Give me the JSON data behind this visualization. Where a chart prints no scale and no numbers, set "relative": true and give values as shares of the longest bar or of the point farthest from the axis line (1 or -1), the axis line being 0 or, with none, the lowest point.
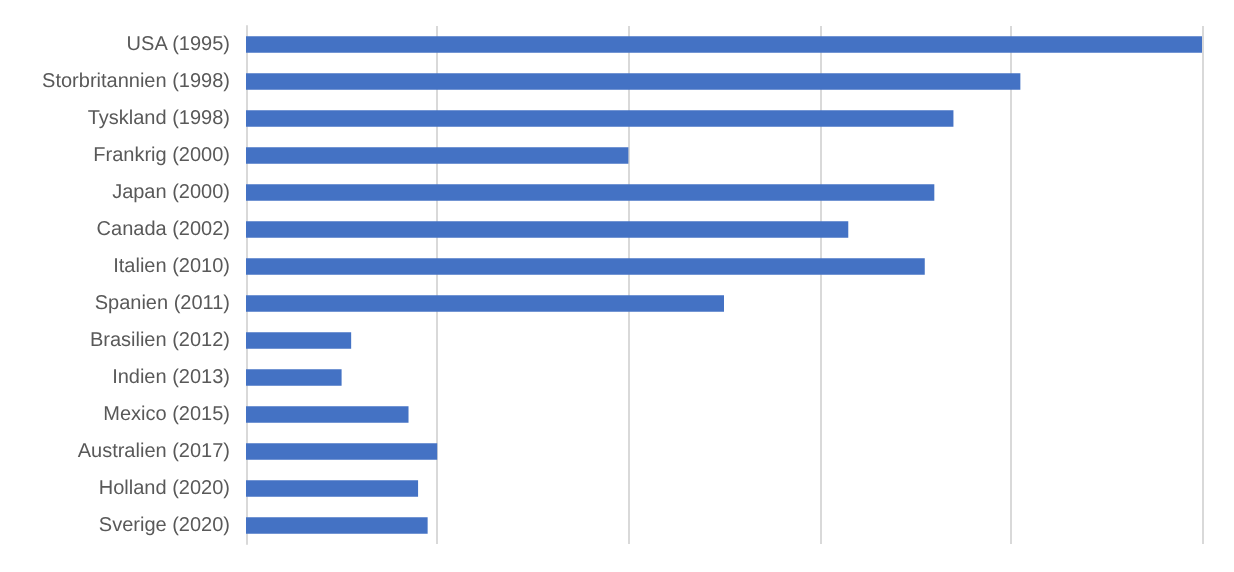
{
  "chart_data": {
    "type": "bar",
    "orientation": "horizontal",
    "relative": true,
    "grid": "x",
    "color": "#4472c4",
    "categories": [
      "USA (1995)",
      "Storbritannien (1998)",
      "Tyskland (1998)",
      "Frankrig (2000)",
      "Japan (2000)",
      "Canada (2002)",
      "Italien (2010)",
      "Spanien (2011)",
      "Brasilien (2012)",
      "Indien (2013)",
      "Mexico (2015)",
      "Australien (2017)",
      "Holland (2020)",
      "Sverige (2020)"
    ],
    "values": [
      1,
      0.81,
      0.74,
      0.4,
      0.72,
      0.63,
      0.71,
      0.5,
      0.11,
      0.1,
      0.17,
      0.2,
      0.18,
      0.19
    ]
  }
}
